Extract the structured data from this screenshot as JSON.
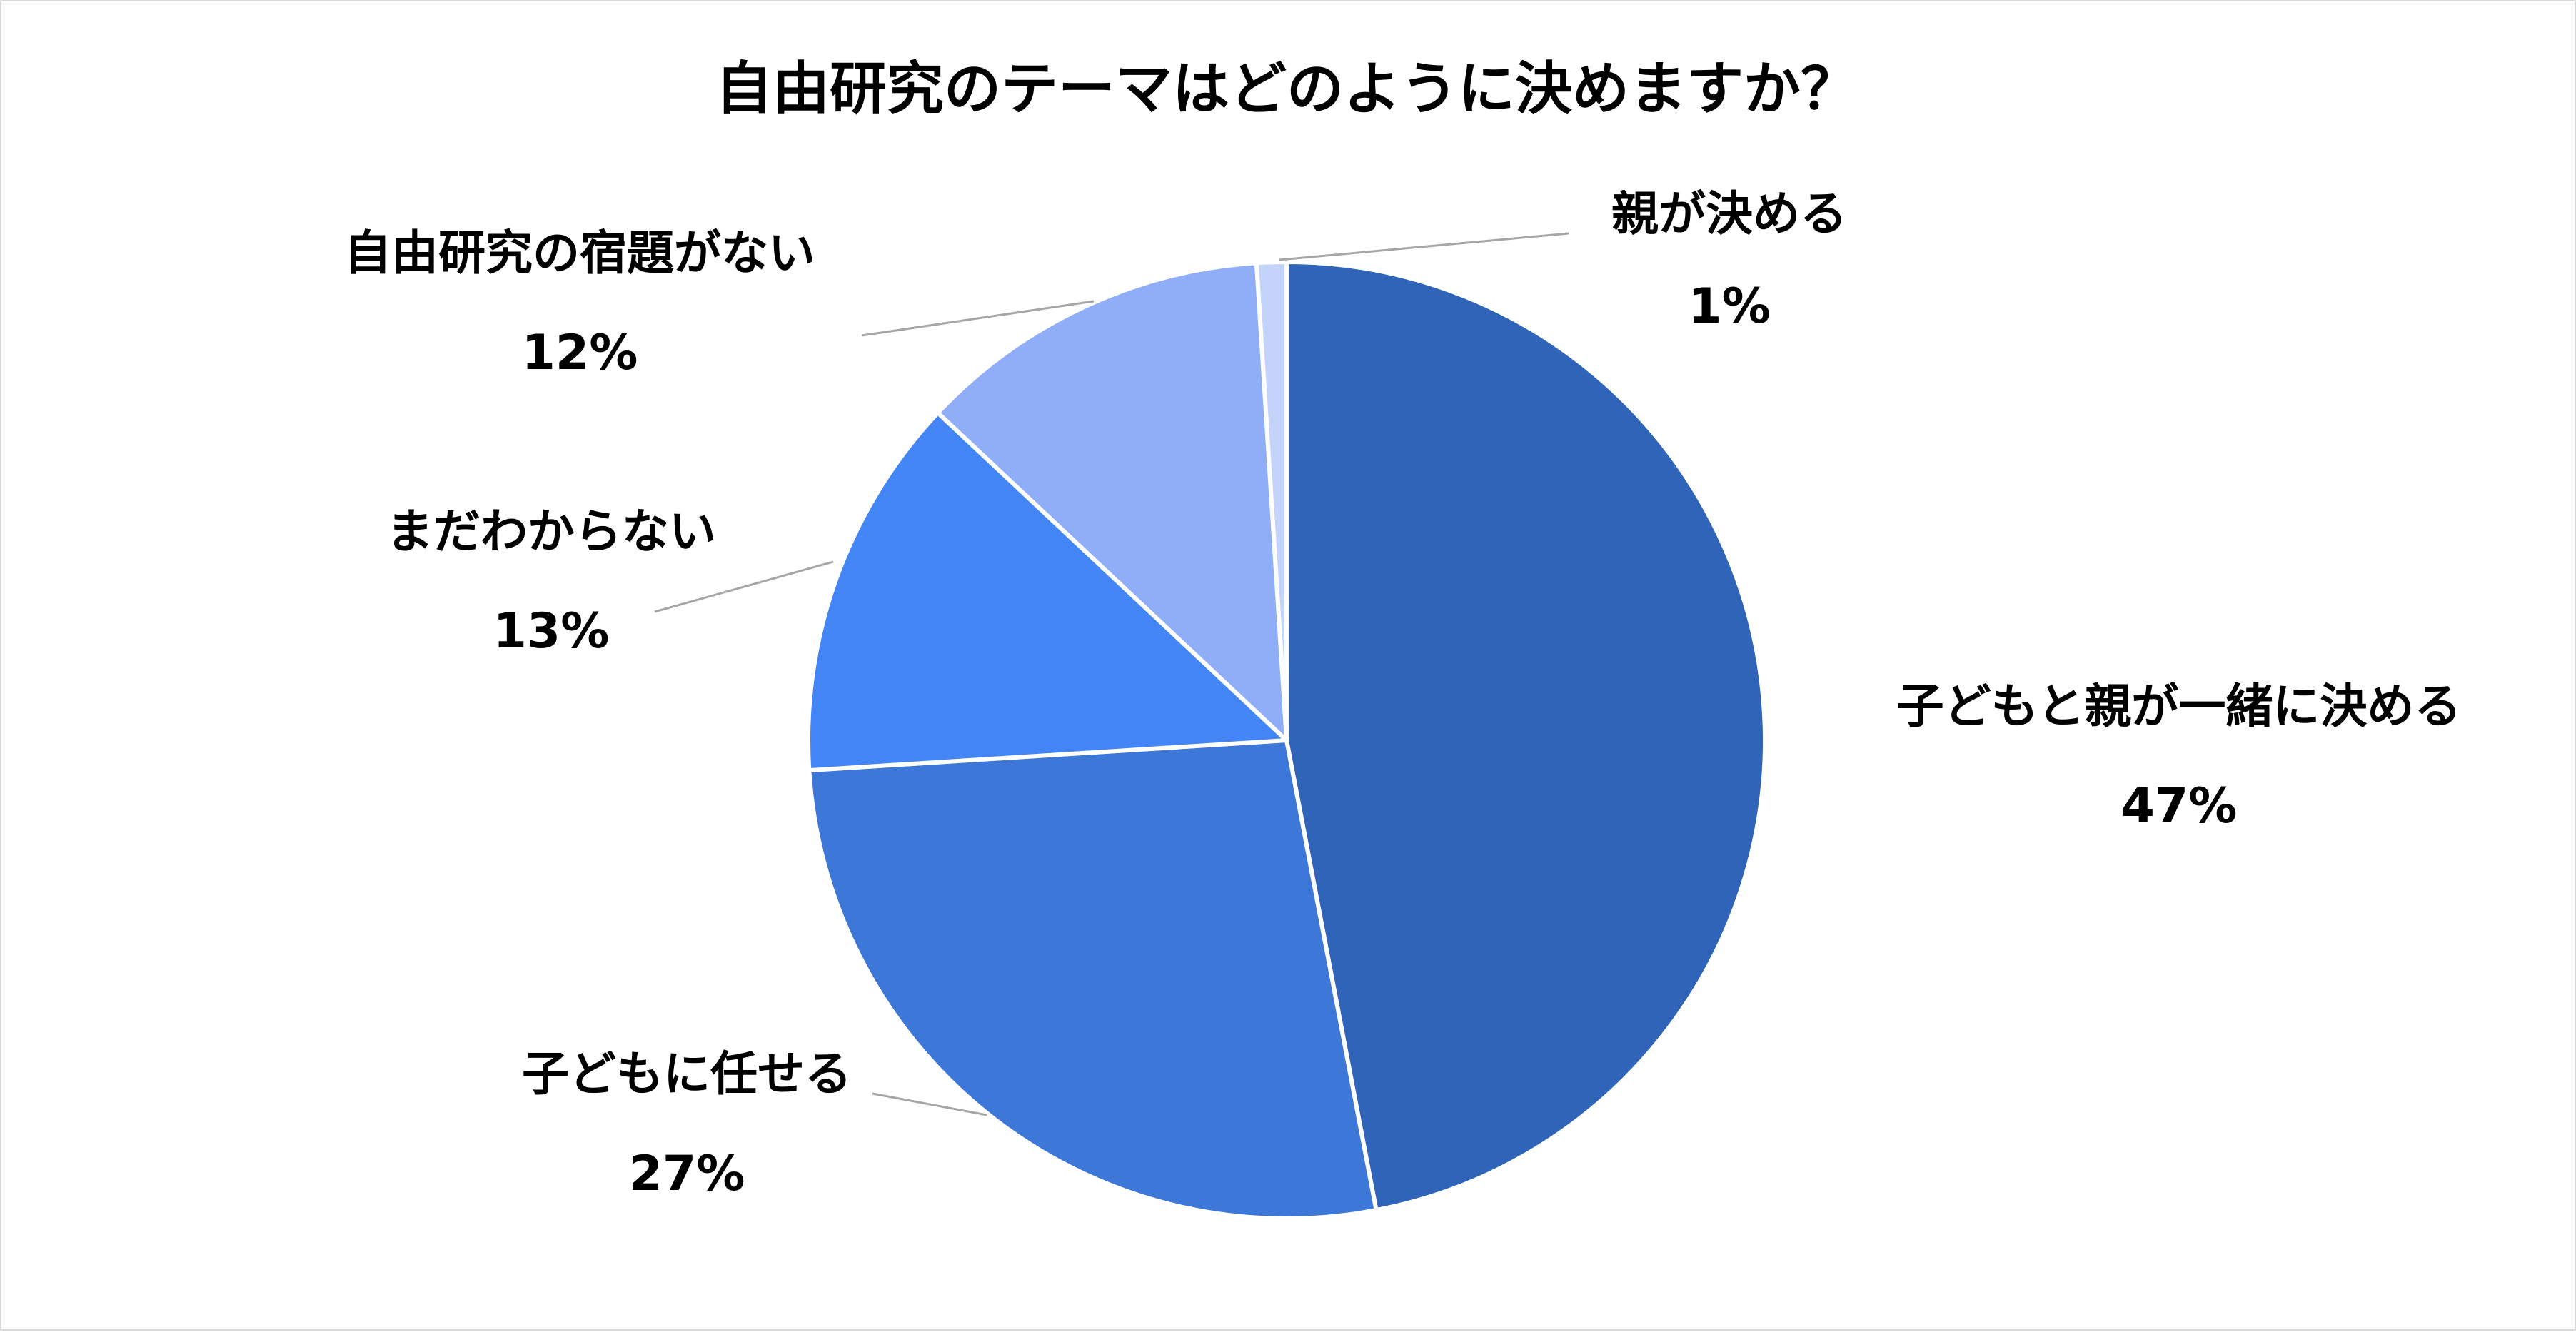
{
  "chart_data": {
    "type": "pie",
    "title": "自由研究のテーマはどのように決めますか？",
    "slices": [
      {
        "label": "子どもと親が一緒に決める",
        "value": 47,
        "value_label": "47%",
        "color": "#3064b8"
      },
      {
        "label": "子どもに任せる",
        "value": 27,
        "value_label": "27%",
        "color": "#3d78d9"
      },
      {
        "label": "まだわからない",
        "value": 13,
        "value_label": "13%",
        "color": "#4385f5"
      },
      {
        "label": "自由研究の宿題がない",
        "value": 12,
        "value_label": "12%",
        "color": "#90aef7"
      },
      {
        "label": "親が決める",
        "value": 1,
        "value_label": "1%",
        "color": "#c4d3fa"
      }
    ],
    "start_angle_deg": 0,
    "direction": "clockwise",
    "legend": "none",
    "data_labels": "outside-with-leader-lines"
  }
}
